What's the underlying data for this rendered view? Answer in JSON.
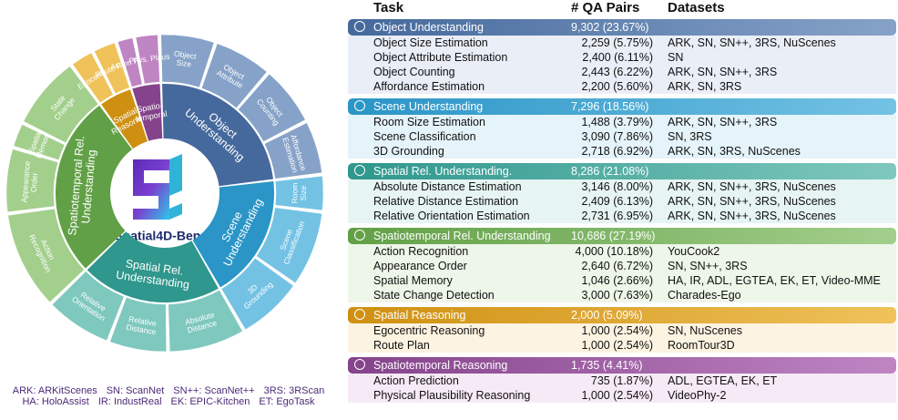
{
  "sunburst": {
    "center_label": "Spatial4D-Bench",
    "groups": [
      {
        "label": [
          "Object",
          "Understanding"
        ],
        "items": [
          [
            "Object",
            "Size"
          ],
          [
            "Object",
            "Attribute"
          ],
          [
            "Object",
            "Counting"
          ],
          [
            "Affordance",
            "Estimation"
          ]
        ]
      },
      {
        "label": [
          "Scene",
          "Understanding"
        ],
        "items": [
          [
            "Room",
            "Size"
          ],
          [
            "Scene",
            "Classification"
          ],
          [
            "3D",
            "Grounding"
          ]
        ]
      },
      {
        "label": [
          "Spatial Rel.",
          "Understanding"
        ],
        "items": [
          [
            "Absolute",
            "Distance"
          ],
          [
            "Relative",
            "Distance"
          ],
          [
            "Relative",
            "Orientation"
          ]
        ]
      },
      {
        "label": [
          "Spatiotemporal Rel.",
          "Understanding"
        ],
        "items": [
          [
            "Action",
            "Recognition"
          ],
          [
            "Appearance",
            "Order"
          ],
          [
            "Spatial",
            "Memory"
          ],
          [
            "State",
            "Change"
          ]
        ]
      },
      {
        "label": [
          "Spatial",
          "Reasoning"
        ],
        "items": [
          [
            "Egocentric"
          ],
          [
            "Route Plan"
          ]
        ]
      },
      {
        "label": [
          "Spatio-",
          "temporal"
        ],
        "items": [
          [
            "Action Pred."
          ],
          [
            "Phys. Plaus"
          ]
        ]
      }
    ]
  },
  "abbreviations": [
    [
      "ARK: ARKitScenes",
      "SN: ScanNet",
      "SN++: ScanNet++",
      "3RS: 3RScan"
    ],
    [
      "HA: HoloAssist",
      "IR: IndustReal",
      "EK: EPIC-Kitchen",
      "ET: EgoTask"
    ]
  ],
  "table": {
    "header": [
      "Task",
      "# QA Pairs",
      "Datasets"
    ],
    "groups": [
      {
        "name": "Object Understanding",
        "qa": "9,302 (23.67%)",
        "rows": [
          [
            "Object Size Estimation",
            "2,259 (5.75%)",
            "ARK, SN, SN++, 3RS, NuScenes"
          ],
          [
            "Object Attribute Estimation",
            "2,400 (6.11%)",
            "SN"
          ],
          [
            "Object Counting",
            "2,443 (6.22%)",
            "ARK, SN, SN++, 3RS"
          ],
          [
            "Affordance Estimation",
            "2,200 (5.60%)",
            "ARK, SN, 3RS"
          ]
        ]
      },
      {
        "name": "Scene Understanding",
        "qa": "7,296 (18.56%)",
        "rows": [
          [
            "Room Size Estimation",
            "1,488 (3.79%)",
            "ARK, SN, SN++, 3RS"
          ],
          [
            "Scene Classification",
            "3,090 (7.86%)",
            "SN, 3RS"
          ],
          [
            "3D Grounding",
            "2,718 (6.92%)",
            "ARK, SN, 3RS, NuScenes"
          ]
        ]
      },
      {
        "name": "Spatial Rel. Understanding.",
        "qa": "8,286 (21.08%)",
        "rows": [
          [
            "Absolute Distance Estimation",
            "3,146 (8.00%)",
            "ARK, SN, SN++, 3RS, NuScenes"
          ],
          [
            "Relative Distance Estimation",
            "2,409 (6.13%)",
            "ARK, SN, SN++, 3RS, NuScenes"
          ],
          [
            "Relative Orientation Estimation",
            "2,731 (6.95%)",
            "ARK, SN, SN++, 3RS, NuScenes"
          ]
        ]
      },
      {
        "name": "Spatiotemporal Rel. Understanding",
        "qa": "10,686 (27.19%)",
        "rows": [
          [
            "Action Recognition",
            "4,000 (10.18%)",
            "YouCook2"
          ],
          [
            "Appearance Order",
            "2,640 (6.72%)",
            "SN, SN++, 3RS"
          ],
          [
            "Spatial Memory",
            "1,046 (2.66%)",
            "HA, IR, ADL, EGTEA, EK, ET, Video-MME"
          ],
          [
            "State Change Detection",
            "3,000 (7.63%)",
            "Charades-Ego"
          ]
        ]
      },
      {
        "name": "Spatial Reasoning",
        "qa": "2,000 (5.09%)",
        "rows": [
          [
            "Egocentric Reasoning",
            "1,000 (2.54%)",
            "SN, NuScenes"
          ],
          [
            "Route Plan",
            "1,000 (2.54%)",
            "RoomTour3D"
          ]
        ]
      },
      {
        "name": "Spatiotemporal Reasoning",
        "qa": "1,735 (4.41%)",
        "rows": [
          [
            "Action Prediction",
            "735 (1.87%)",
            "ADL, EGTEA, EK, ET"
          ],
          [
            "Physical Plausibility Reasoning",
            "1,000 (2.54%)",
            "VideoPhy-2"
          ]
        ]
      }
    ]
  }
}
